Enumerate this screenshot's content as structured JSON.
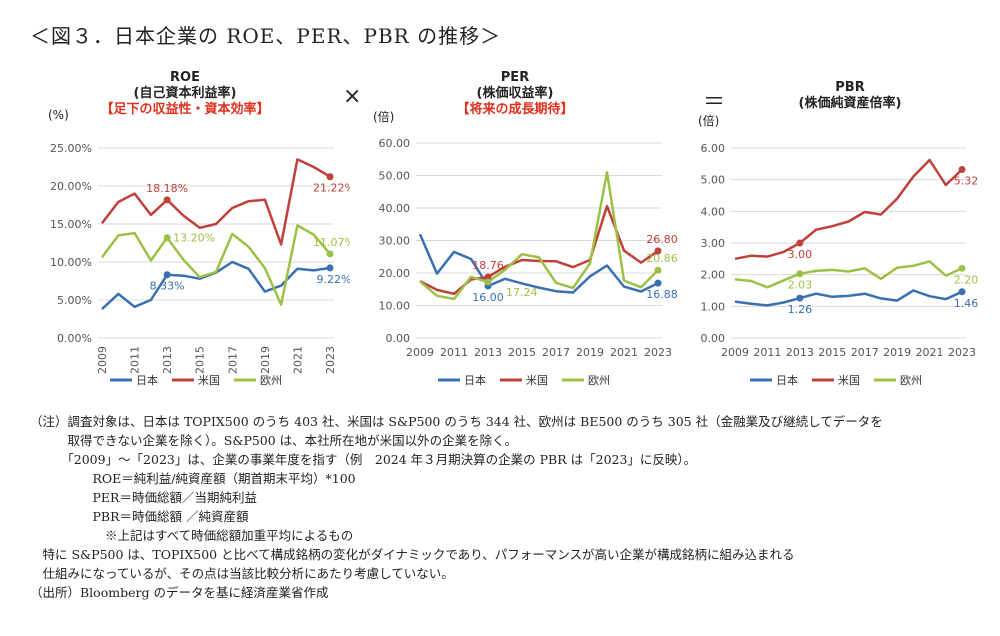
{
  "figure_title": "＜図３．日本企業の ROE、PER、PBR の推移＞",
  "operators": {
    "times": "×",
    "equals": "＝"
  },
  "colors": {
    "japan": "#3a6fb0",
    "us": "#c0403a",
    "europe": "#9cc146",
    "grid": "#d9d9d9",
    "axis_text": "#555555"
  },
  "chart_data": [
    {
      "id": "roe",
      "type": "line",
      "title": "ROE",
      "subtitle": "(自己資本利益率)",
      "tagline": "【足下の収益性・資本効率】",
      "unit": "(%)",
      "x": [
        2009,
        2010,
        2011,
        2012,
        2013,
        2014,
        2015,
        2016,
        2017,
        2018,
        2019,
        2020,
        2021,
        2022,
        2023
      ],
      "xticks": [
        "2009",
        "2011",
        "2013",
        "2015",
        "2017",
        "2019",
        "2021",
        "2023"
      ],
      "ylim": [
        0,
        25
      ],
      "yticks": [
        0,
        5,
        10,
        15,
        20,
        25
      ],
      "yticklabels": [
        "0.00%",
        "5.00%",
        "10.00%",
        "15.00%",
        "20.00%",
        "25.00%"
      ],
      "series": [
        {
          "name": "日本",
          "color_key": "japan",
          "values": [
            3.8,
            5.8,
            4.1,
            5.0,
            8.33,
            8.2,
            7.8,
            8.6,
            10.0,
            9.1,
            6.1,
            6.9,
            9.1,
            8.9,
            9.22
          ]
        },
        {
          "name": "米国",
          "color_key": "us",
          "values": [
            15.1,
            17.9,
            19.0,
            16.2,
            18.18,
            16.1,
            14.5,
            15.0,
            17.1,
            18.0,
            18.2,
            12.3,
            23.5,
            22.5,
            21.22
          ]
        },
        {
          "name": "欧州",
          "color_key": "europe",
          "values": [
            10.6,
            13.5,
            13.8,
            10.2,
            13.2,
            10.3,
            8.0,
            8.7,
            13.7,
            12.0,
            9.2,
            4.4,
            14.8,
            13.6,
            11.07
          ]
        }
      ],
      "labels": [
        {
          "text": "18.18%",
          "series": 1,
          "index": 4,
          "pos": "above"
        },
        {
          "text": "13.20%",
          "series": 2,
          "index": 4,
          "pos": "right"
        },
        {
          "text": "8.33%",
          "series": 0,
          "index": 4,
          "pos": "below"
        },
        {
          "text": "21.22%",
          "series": 1,
          "index": 14,
          "pos": "below"
        },
        {
          "text": "11.07%",
          "series": 2,
          "index": 14,
          "pos": "above"
        },
        {
          "text": "9.22%",
          "series": 0,
          "index": 14,
          "pos": "below"
        }
      ],
      "legend": [
        "日本",
        "米国",
        "欧州"
      ]
    },
    {
      "id": "per",
      "type": "line",
      "title": "PER",
      "subtitle": "(株価収益率)",
      "tagline": "【将来の成長期待】",
      "unit": "(倍)",
      "x": [
        2009,
        2010,
        2011,
        2012,
        2013,
        2014,
        2015,
        2016,
        2017,
        2018,
        2019,
        2020,
        2021,
        2022,
        2023
      ],
      "xticks": [
        "2009",
        "2011",
        "2013",
        "2015",
        "2017",
        "2019",
        "2021",
        "2023"
      ],
      "ylim": [
        0,
        60
      ],
      "yticks": [
        0,
        10,
        20,
        30,
        40,
        50,
        60
      ],
      "yticklabels": [
        "0.00",
        "10.00",
        "20.00",
        "30.00",
        "40.00",
        "50.00",
        "60.00"
      ],
      "series": [
        {
          "name": "日本",
          "color_key": "japan",
          "values": [
            31.9,
            19.8,
            26.5,
            24.3,
            16.0,
            18.2,
            16.8,
            15.5,
            14.4,
            14.0,
            19.0,
            22.3,
            15.8,
            14.3,
            16.88
          ]
        },
        {
          "name": "米国",
          "color_key": "us",
          "values": [
            17.5,
            14.8,
            13.6,
            18.0,
            18.76,
            21.9,
            24.0,
            23.7,
            23.6,
            21.8,
            24.0,
            40.6,
            26.9,
            23.2,
            26.8
          ]
        },
        {
          "name": "欧州",
          "color_key": "europe",
          "values": [
            17.4,
            13.0,
            12.0,
            18.8,
            17.24,
            21.0,
            25.8,
            24.8,
            17.0,
            15.4,
            23.0,
            51.0,
            17.7,
            15.6,
            20.86
          ]
        }
      ],
      "labels": [
        {
          "text": "18.76",
          "series": 1,
          "index": 4,
          "pos": "above"
        },
        {
          "text": "16.00",
          "series": 0,
          "index": 4,
          "pos": "below"
        },
        {
          "text": "17.24",
          "series": 2,
          "index": 4,
          "pos": "belowright"
        },
        {
          "text": "26.80",
          "series": 1,
          "index": 14,
          "pos": "above"
        },
        {
          "text": "20.86",
          "series": 2,
          "index": 14,
          "pos": "above"
        },
        {
          "text": "16.88",
          "series": 0,
          "index": 14,
          "pos": "below"
        }
      ],
      "legend": [
        "日本",
        "米国",
        "欧州"
      ]
    },
    {
      "id": "pbr",
      "type": "line",
      "title": "PBR",
      "subtitle": "(株価純資産倍率)",
      "tagline": "",
      "unit": "(倍)",
      "x": [
        2009,
        2010,
        2011,
        2012,
        2013,
        2014,
        2015,
        2016,
        2017,
        2018,
        2019,
        2020,
        2021,
        2022,
        2023
      ],
      "xticks": [
        "2009",
        "2011",
        "2013",
        "2015",
        "2017",
        "2019",
        "2021",
        "2023"
      ],
      "ylim": [
        0,
        6
      ],
      "yticks": [
        0,
        1,
        2,
        3,
        4,
        5,
        6
      ],
      "yticklabels": [
        "0.00",
        "1.00",
        "2.00",
        "3.00",
        "4.00",
        "5.00",
        "6.00"
      ],
      "series": [
        {
          "name": "日本",
          "color_key": "japan",
          "values": [
            1.15,
            1.08,
            1.03,
            1.12,
            1.26,
            1.4,
            1.3,
            1.33,
            1.4,
            1.25,
            1.18,
            1.5,
            1.32,
            1.23,
            1.46
          ]
        },
        {
          "name": "米国",
          "color_key": "us",
          "values": [
            2.5,
            2.6,
            2.57,
            2.72,
            3.0,
            3.42,
            3.53,
            3.68,
            3.98,
            3.9,
            4.4,
            5.1,
            5.62,
            4.83,
            5.32
          ]
        },
        {
          "name": "欧州",
          "color_key": "europe",
          "values": [
            1.85,
            1.8,
            1.6,
            1.82,
            2.03,
            2.12,
            2.15,
            2.1,
            2.2,
            1.87,
            2.22,
            2.28,
            2.42,
            1.97,
            2.2
          ]
        }
      ],
      "labels": [
        {
          "text": "3.00",
          "series": 1,
          "index": 4,
          "pos": "below"
        },
        {
          "text": "2.03",
          "series": 2,
          "index": 4,
          "pos": "below"
        },
        {
          "text": "1.26",
          "series": 0,
          "index": 4,
          "pos": "below"
        },
        {
          "text": "5.32",
          "series": 1,
          "index": 14,
          "pos": "below"
        },
        {
          "text": "2.20",
          "series": 2,
          "index": 14,
          "pos": "below"
        },
        {
          "text": "1.46",
          "series": 0,
          "index": 14,
          "pos": "below"
        }
      ],
      "legend": [
        "日本",
        "米国",
        "欧州"
      ]
    }
  ],
  "notes": [
    "（注）調査対象は、日本は TOPIX500 のうち 403 社、米国は S&P500 のうち 344 社、欧州は BE500 のうち 305 社（金融業及び継続してデータを",
    "　　　取得できない企業を除く）。S&P500 は、本社所在地が米国以外の企業を除く。",
    "　　　「2009」～「2023」は、企業の事業年度を指す（例　2024 年３月期決算の企業の PBR は「2023」に反映）。",
    "　　　　　ROE＝純利益/純資産額（期首期末平均）*100",
    "　　　　　PER＝時価総額／当期純利益",
    "　　　　　PBR＝時価総額 ／純資産額",
    "　　　　　　※上記はすべて時価総額加重平均によるもの",
    "　特に S&P500 は、TOPIX500 と比べて構成銘柄の変化がダイナミックであり、パフォーマンスが高い企業が構成銘柄に組み込まれる",
    "　仕組みになっているが、その点は当該比較分析にあたり考慮していない。",
    "（出所）Bloomberg のデータを基に経済産業省作成"
  ]
}
